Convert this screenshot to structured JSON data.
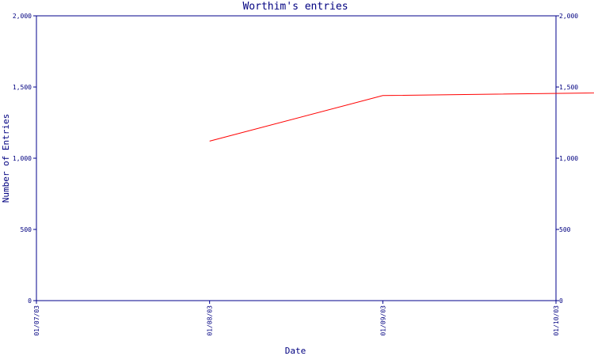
{
  "chart_data": {
    "type": "line",
    "title": "Worthim's entries",
    "xlabel": "Date",
    "ylabel": "Number of Entries",
    "x_ticks": [
      "01/07/03",
      "01/08/03",
      "01/09/03",
      "01/10/03"
    ],
    "y_ticks": [
      "0",
      "500",
      "1,000",
      "1,500",
      "2,000"
    ],
    "ylim": [
      0,
      2000
    ],
    "x_range": [
      "01/07/03",
      "01/10/03"
    ],
    "series": [
      {
        "color": "#ff0000",
        "points": [
          {
            "x": "01/08/03",
            "y": 1120
          },
          {
            "x": "01/09/03",
            "y": 1440
          },
          {
            "x": "01/09/03 + 4 days",
            "y": 1500
          }
        ]
      }
    ],
    "grid": false,
    "right_axis": true,
    "colors": {
      "axis": "#00008b",
      "text": "#000080",
      "line": "#ff0000"
    }
  }
}
